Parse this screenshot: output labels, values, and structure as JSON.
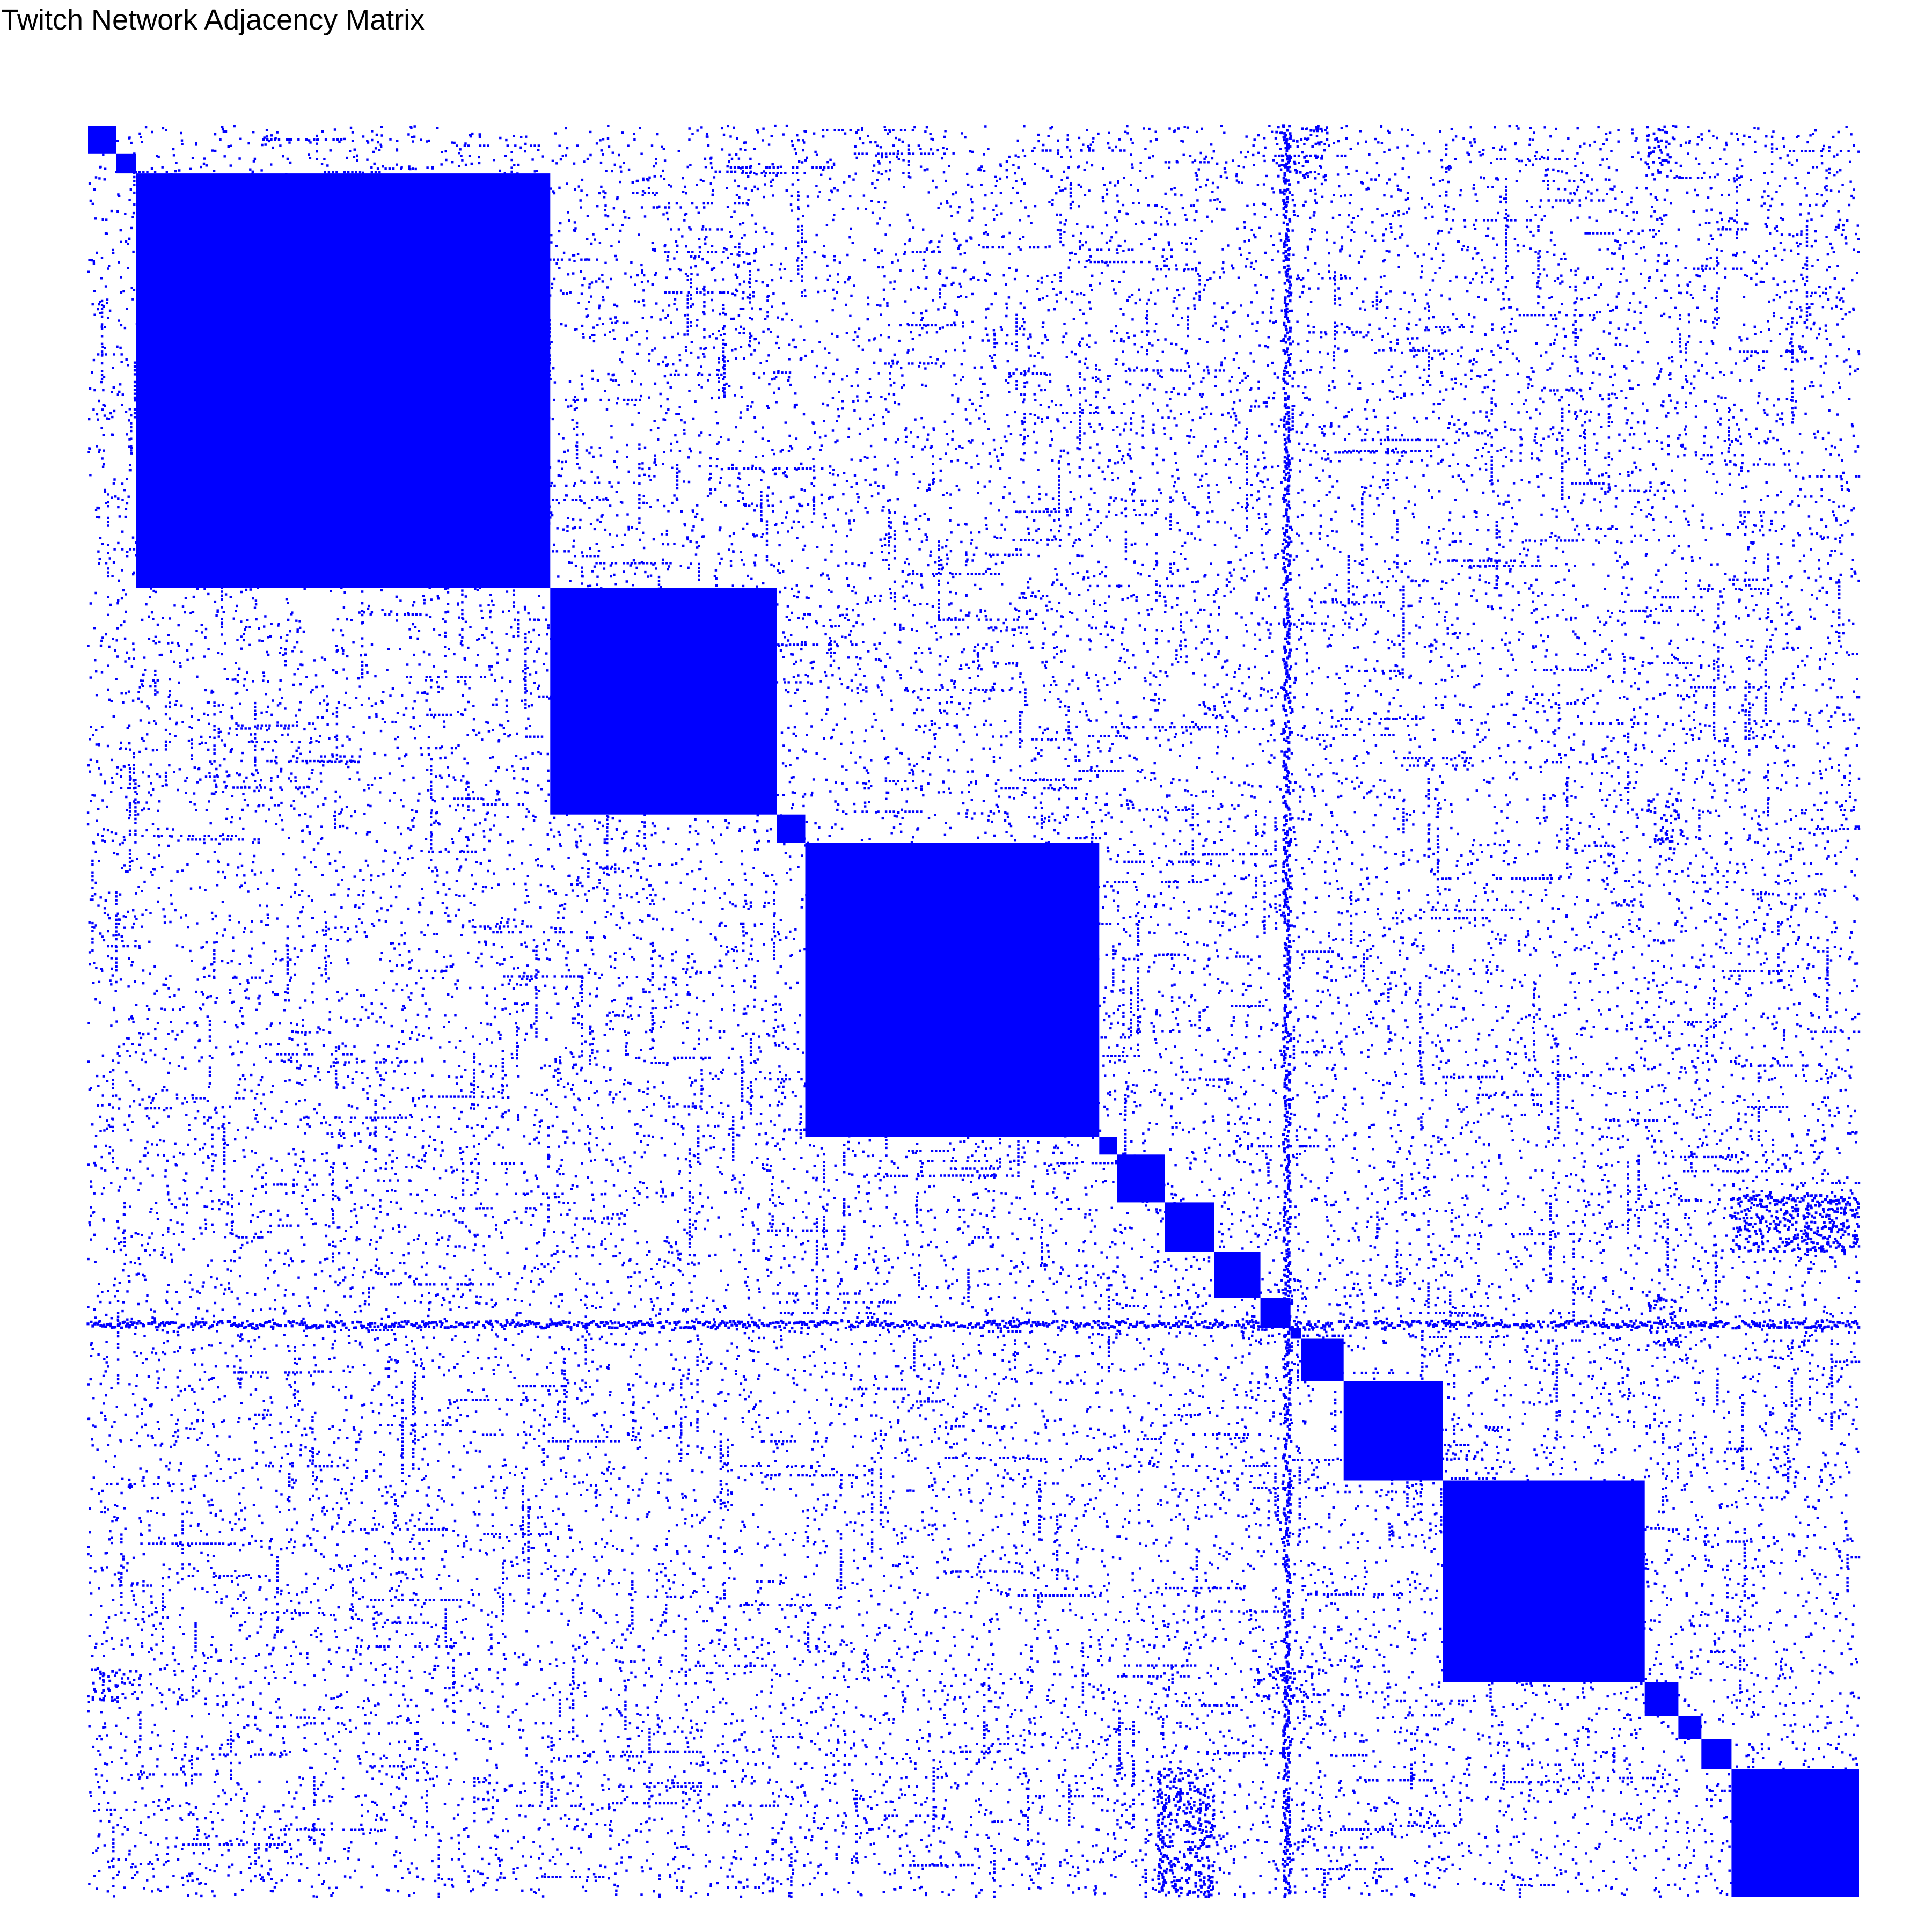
{
  "chart_data": {
    "type": "heatmap",
    "title": "Twitch Network Adjacency Matrix",
    "xlabel": "",
    "ylabel": "",
    "grid": false,
    "legend": "none",
    "mark_color": "#0000ff",
    "background_color": "#ffffff",
    "index_range": [
      0,
      1
    ],
    "description_of_values": "fraction of node index along each axis, 0 = top/left, 1 = bottom/right",
    "diagonal_blocks": [
      {
        "start": 0.0,
        "end": 0.016
      },
      {
        "start": 0.016,
        "end": 0.027
      },
      {
        "start": 0.027,
        "end": 0.261
      },
      {
        "start": 0.261,
        "end": 0.389
      },
      {
        "start": 0.389,
        "end": 0.405
      },
      {
        "start": 0.405,
        "end": 0.571
      },
      {
        "start": 0.571,
        "end": 0.581
      },
      {
        "start": 0.581,
        "end": 0.608
      },
      {
        "start": 0.608,
        "end": 0.636
      },
      {
        "start": 0.636,
        "end": 0.662
      },
      {
        "start": 0.662,
        "end": 0.679
      },
      {
        "start": 0.679,
        "end": 0.685
      },
      {
        "start": 0.685,
        "end": 0.709
      },
      {
        "start": 0.709,
        "end": 0.765
      },
      {
        "start": 0.765,
        "end": 0.879
      },
      {
        "start": 0.879,
        "end": 0.898
      },
      {
        "start": 0.898,
        "end": 0.911
      },
      {
        "start": 0.911,
        "end": 0.928
      },
      {
        "start": 0.928,
        "end": 1.0
      }
    ],
    "dense_bands": [
      {
        "orientation": "horizontal",
        "at": 0.677,
        "from": 0.0,
        "to": 1.0
      },
      {
        "orientation": "vertical",
        "at": 0.677,
        "from": 0.0,
        "to": 1.0
      },
      {
        "orientation": "horizontal",
        "at": 0.606,
        "from": 0.928,
        "to": 1.0
      },
      {
        "orientation": "vertical",
        "at": 0.606,
        "from": 0.928,
        "to": 1.0
      }
    ],
    "off_diagonal_clusters": [
      {
        "rows": [
          0.608,
          0.636
        ],
        "cols": [
          0.928,
          1.0
        ],
        "density": 0.55
      },
      {
        "rows": [
          0.928,
          1.0
        ],
        "cols": [
          0.608,
          0.636
        ],
        "density": 0.5
      },
      {
        "rows": [
          0.0,
          0.03
        ],
        "cols": [
          0.67,
          0.7
        ],
        "density": 0.3
      },
      {
        "rows": [
          0.0,
          0.03
        ],
        "cols": [
          0.88,
          0.9
        ],
        "density": 0.3
      },
      {
        "rows": [
          0.38,
          0.41
        ],
        "cols": [
          0.88,
          0.9
        ],
        "density": 0.25
      },
      {
        "rows": [
          0.87,
          0.89
        ],
        "cols": [
          0.0,
          0.03
        ],
        "density": 0.3
      },
      {
        "rows": [
          0.87,
          0.89
        ],
        "cols": [
          0.66,
          0.7
        ],
        "density": 0.3
      },
      {
        "rows": [
          0.66,
          0.69
        ],
        "cols": [
          0.88,
          0.9
        ],
        "density": 0.3
      }
    ],
    "background_density": 0.012
  }
}
